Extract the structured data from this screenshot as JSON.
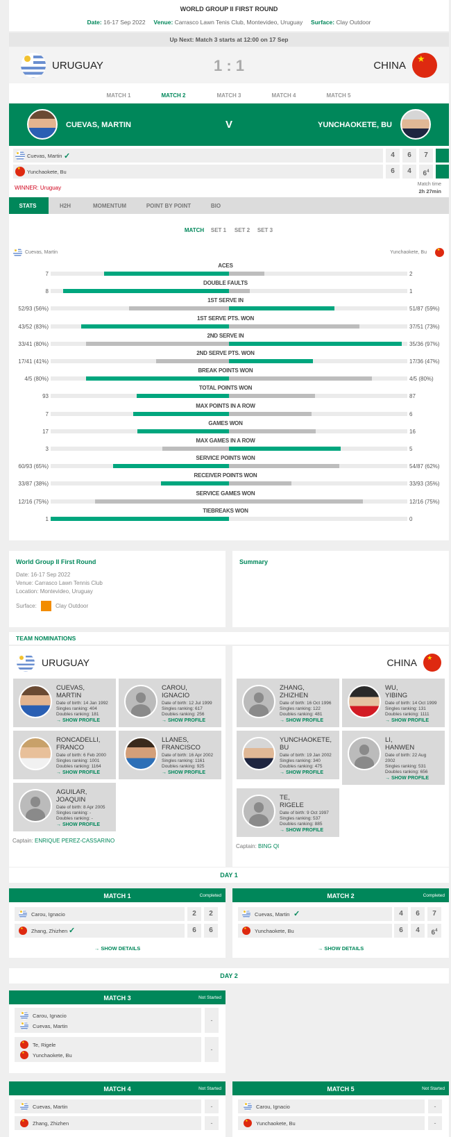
{
  "header": {
    "round": "WORLD GROUP II FIRST ROUND",
    "date_label": "Date:",
    "date": "16-17 Sep 2022",
    "venue_label": "Venue:",
    "venue": "Carrasco Lawn Tenis Club, Montevideo, Uruguay",
    "surface_label": "Surface:",
    "surface": "Clay Outdoor",
    "up_next": "Up Next: Match 3 starts at 12:00 on 17 Sep"
  },
  "tie": {
    "home": "URUGUAY",
    "away": "CHINA",
    "score": "1 : 1"
  },
  "match_tabs": [
    "MATCH 1",
    "MATCH 2",
    "MATCH 3",
    "MATCH 4",
    "MATCH 5"
  ],
  "current_match": {
    "p1": "CUEVAS, MARTIN",
    "vs": "V",
    "p2": "YUNCHAOKETE, BU",
    "row1": {
      "name": "Cuevas, Martin",
      "check": "✓",
      "s1": "4",
      "s2": "6",
      "s3": "7"
    },
    "row2": {
      "name": "Yunchaokete, Bu",
      "s1": "6",
      "s2": "4",
      "s3": "6",
      "s3sup": "4"
    },
    "winner": "WINNER: Uruguay",
    "time_label": "Match time",
    "time": "2h 27min"
  },
  "stat_tabs": [
    "STATS",
    "H2H",
    "MOMENTUM",
    "POINT BY POINT",
    "BIO"
  ],
  "set_tabs": [
    "MATCH",
    "SET 1",
    "SET 2",
    "SET 3"
  ],
  "stats_players": {
    "left": "Cuevas, Martin",
    "right": "Yunchaokete, Bu"
  },
  "stats": [
    {
      "label": "ACES",
      "l": "7",
      "r": "2",
      "lv": 7,
      "rv": 2,
      "max": 10
    },
    {
      "label": "DOUBLE FAULTS",
      "l": "8",
      "r": "1",
      "lv": 8,
      "rv": 1,
      "max": 8.6
    },
    {
      "label": "1ST SERVE IN",
      "l": "52/93 (56%)",
      "r": "51/87 (59%)",
      "lv": 56,
      "rv": 59,
      "max": 100
    },
    {
      "label": "1ST SERVE PTS. WON",
      "l": "43/52 (83%)",
      "r": "37/51 (73%)",
      "lv": 83,
      "rv": 73,
      "max": 100
    },
    {
      "label": "2ND SERVE IN",
      "l": "33/41 (80%)",
      "r": "35/36 (97%)",
      "lv": 80,
      "rv": 97,
      "max": 100
    },
    {
      "label": "2ND SERVE PTS. WON",
      "l": "17/41 (41%)",
      "r": "17/36 (47%)",
      "lv": 41,
      "rv": 47,
      "max": 100
    },
    {
      "label": "BREAK POINTS WON",
      "l": "4/5 (80%)",
      "r": "4/5 (80%)",
      "lv": 80,
      "rv": 80,
      "max": 100
    },
    {
      "label": "TOTAL POINTS WON",
      "l": "93",
      "r": "87",
      "lv": 93,
      "rv": 87,
      "max": 180
    },
    {
      "label": "MAX POINTS IN A ROW",
      "l": "7",
      "r": "6",
      "lv": 7,
      "rv": 6,
      "max": 13
    },
    {
      "label": "GAMES WON",
      "l": "17",
      "r": "16",
      "lv": 17,
      "rv": 16,
      "max": 33
    },
    {
      "label": "MAX GAMES IN A ROW",
      "l": "3",
      "r": "5",
      "lv": 3,
      "rv": 5,
      "max": 8
    },
    {
      "label": "SERVICE POINTS WON",
      "l": "60/93 (65%)",
      "r": "54/87 (62%)",
      "lv": 65,
      "rv": 62,
      "max": 100
    },
    {
      "label": "RECEIVER POINTS WON",
      "l": "33/87 (38%)",
      "r": "33/93 (35%)",
      "lv": 38,
      "rv": 35,
      "max": 100
    },
    {
      "label": "SERVICE GAMES WON",
      "l": "12/16 (75%)",
      "r": "12/16 (75%)",
      "lv": 75,
      "rv": 75,
      "max": 100
    },
    {
      "label": "TIEBREAKS WON",
      "l": "1",
      "r": "0",
      "lv": 1,
      "rv": 0,
      "max": 1
    }
  ],
  "info": {
    "title": "World Group II First Round",
    "date": "Date: 16-17 Sep 2022",
    "venue": "Venue: Carrasco Lawn Tennis Club",
    "location": "Location: Montevideo, Uruguay",
    "surface_label": "Surface:",
    "surface": "Clay Outdoor",
    "summary": "Summary",
    "surface_color": "#f28c00"
  },
  "nominations": {
    "title": "TEAM NOMINATIONS",
    "home": {
      "team": "URUGUAY",
      "captain_label": "Captain:",
      "captain": "ENRIQUE PEREZ-CASSARINO",
      "players": [
        {
          "n1": "CUEVAS,",
          "n2": "MARTIN",
          "dob": "Date of birth: 14 Jan 1992",
          "sr": "Singles ranking: 404",
          "dr": "Doubles ranking: 181",
          "show": "→ SHOW PROFILE"
        },
        {
          "n1": "CAROU,",
          "n2": "IGNACIO",
          "dob": "Date of birth: 12 Jul 1999",
          "sr": "Singles ranking: 617",
          "dr": "Doubles ranking: 256",
          "show": "→ SHOW PROFILE"
        },
        {
          "n1": "RONCADELLI,",
          "n2": "FRANCO",
          "dob": "Date of birth: 6 Feb 2000",
          "sr": "Singles ranking: 1001",
          "dr": "Doubles ranking: 1164",
          "show": "→ SHOW PROFILE"
        },
        {
          "n1": "LLANES,",
          "n2": "FRANCISCO",
          "dob": "Date of birth: 16 Apr 2002",
          "sr": "Singles ranking: 1161",
          "dr": "Doubles ranking: 925",
          "show": "→ SHOW PROFILE"
        },
        {
          "n1": "AGUILAR,",
          "n2": "JOAQUIN",
          "dob": "Date of birth: 8 Apr 2005",
          "sr": "Singles ranking: -",
          "dr": "Doubles ranking: -",
          "show": "→ SHOW PROFILE"
        }
      ]
    },
    "away": {
      "team": "CHINA",
      "captain_label": "Captain:",
      "captain": "BING QI",
      "players": [
        {
          "n1": "ZHANG,",
          "n2": "ZHIZHEN",
          "dob": "Date of birth: 16 Oct 1996",
          "sr": "Singles ranking: 122",
          "dr": "Doubles ranking: 481",
          "show": "→ SHOW PROFILE"
        },
        {
          "n1": "WU,",
          "n2": "YIBING",
          "dob": "Date of birth: 14 Oct 1999",
          "sr": "Singles ranking: 131",
          "dr": "Doubles ranking: 1111",
          "show": "→ SHOW PROFILE"
        },
        {
          "n1": "YUNCHAOKETE,",
          "n2": "BU",
          "dob": "Date of birth: 19 Jan 2002",
          "sr": "Singles ranking: 340",
          "dr": "Doubles ranking: 475",
          "show": "→ SHOW PROFILE"
        },
        {
          "n1": "LI,",
          "n2": "HANWEN",
          "dob": "Date of birth: 22 Aug",
          "dob2": "2002",
          "sr": "Singles ranking: 531",
          "dr": "Doubles ranking: 656",
          "show": "→ SHOW PROFILE"
        },
        {
          "n1": "TE,",
          "n2": "RIGELE",
          "dob": "Date of birth: 9 Oct 1997",
          "sr": "Singles ranking: 537",
          "dr": "Doubles ranking: 885",
          "show": "→ SHOW PROFILE"
        }
      ]
    }
  },
  "schedule": {
    "day1": "DAY 1",
    "day2": "DAY 2",
    "m1": {
      "title": "MATCH 1",
      "status": "Completed",
      "p1": "Carou, Ignacio",
      "p2": "Zhang, Zhizhen",
      "check": "✓",
      "a1": "2",
      "a2": "2",
      "b1": "6",
      "b2": "6",
      "show": "→ SHOW DETAILS"
    },
    "m2": {
      "title": "MATCH 2",
      "status": "Completed",
      "p1": "Cuevas, Martin",
      "p2": "Yunchaokete, Bu",
      "check": "✓",
      "a1": "4",
      "a2": "6",
      "a3": "7",
      "b1": "6",
      "b2": "4",
      "b3": "6",
      "b3sup": "4",
      "show": "→ SHOW DETAILS"
    },
    "m3": {
      "title": "MATCH 3",
      "status": "Not Started",
      "p1": "Carou, Ignacio",
      "p2": "Cuevas, Martin",
      "p3": "Te, Rigele",
      "p4": "Yunchaokete, Bu",
      "d": "-"
    },
    "m4": {
      "title": "MATCH 4",
      "status": "Not Started",
      "p1": "Cuevas, Martin",
      "p2": "Zhang, Zhizhen",
      "d": "-"
    },
    "m5": {
      "title": "MATCH 5",
      "status": "Not Started",
      "p1": "Carou, Ignacio",
      "p2": "Yunchaokete, Bu",
      "d": "-"
    }
  }
}
